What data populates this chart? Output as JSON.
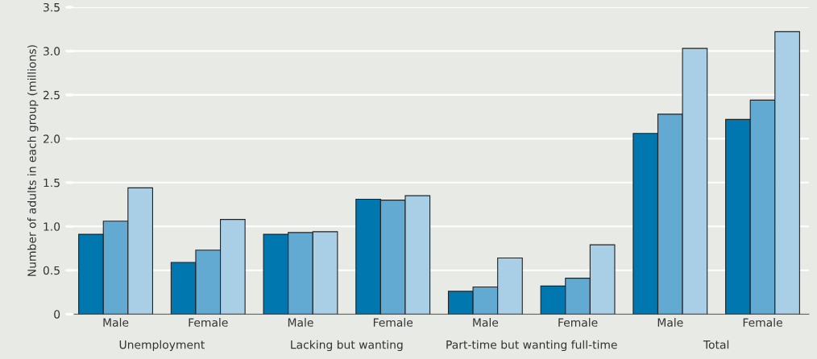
{
  "chart_data": {
    "type": "bar",
    "ylabel": "Number of adults in each group (millions)",
    "categories": [
      "Male",
      "Female",
      "Male",
      "Female",
      "Male",
      "Female",
      "Male",
      "Female"
    ],
    "series": [
      {
        "color": "#0077ae",
        "values": [
          0.91,
          0.59,
          0.91,
          1.31,
          0.26,
          0.32,
          2.06,
          2.22
        ]
      },
      {
        "color": "#62aad2",
        "values": [
          1.06,
          0.73,
          0.93,
          1.3,
          0.31,
          0.41,
          2.28,
          2.44
        ]
      },
      {
        "color": "#a9cfe6",
        "values": [
          1.44,
          1.08,
          0.94,
          1.35,
          0.64,
          0.79,
          3.03,
          3.22
        ]
      }
    ],
    "annotations": [
      "Unemployment",
      "Lacking but wanting",
      "Part-time but wanting full-time",
      "Total"
    ],
    "ylim": [
      0,
      3.5
    ],
    "yticks": [
      {
        "value": 0,
        "label": "0"
      },
      {
        "value": 0.5,
        "label": "0.5"
      },
      {
        "value": 1.0,
        "label": "1.0"
      },
      {
        "value": 1.5,
        "label": "1.5"
      },
      {
        "value": 2.0,
        "label": "2.0"
      },
      {
        "value": 2.5,
        "label": "2.5"
      },
      {
        "value": 3.0,
        "label": "3.0"
      },
      {
        "value": 3.5,
        "label": "3.5"
      }
    ],
    "grid": "y",
    "legend": false
  }
}
